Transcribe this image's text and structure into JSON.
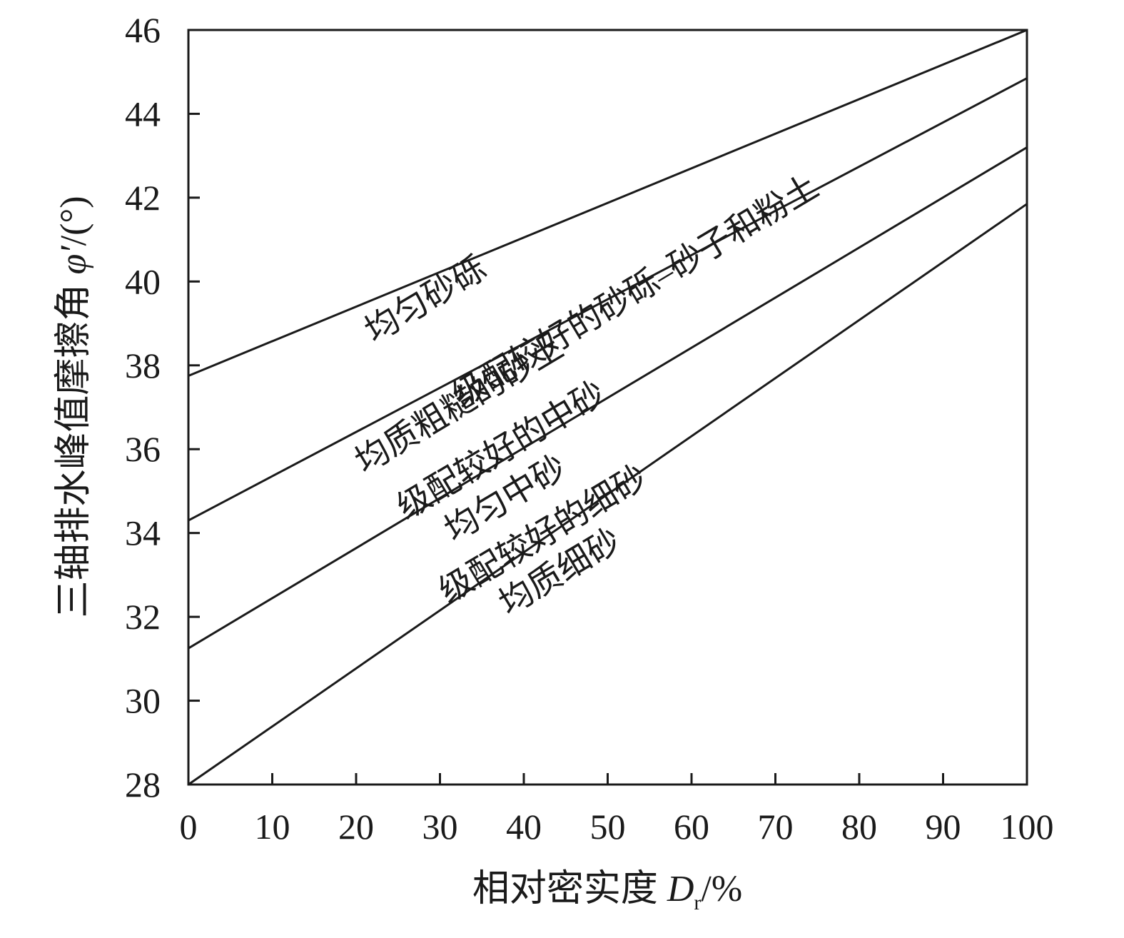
{
  "chart_data": {
    "type": "line",
    "xlabel_main": "相对密实度 ",
    "xlabel_symbol": "D",
    "xlabel_subscript": "r",
    "xlabel_unit": "/%",
    "ylabel_main": "三轴排水峰值摩擦角 ",
    "ylabel_symbol": "φ′",
    "ylabel_unit": "/(°)",
    "xlim": [
      0,
      100
    ],
    "ylim": [
      28,
      46
    ],
    "xticks": [
      "0",
      "10",
      "20",
      "30",
      "40",
      "50",
      "60",
      "70",
      "80",
      "90",
      "100"
    ],
    "yticks": [
      "28",
      "30",
      "32",
      "34",
      "36",
      "38",
      "40",
      "42",
      "44",
      "46"
    ],
    "grid": false,
    "series": [
      {
        "x": [
          0,
          100
        ],
        "y": [
          37.75,
          46.0
        ]
      },
      {
        "x": [
          0,
          100
        ],
        "y": [
          34.3,
          44.85
        ]
      },
      {
        "x": [
          0,
          100
        ],
        "y": [
          31.25,
          43.2
        ]
      },
      {
        "x": [
          0,
          100
        ],
        "y": [
          28.0,
          41.85
        ]
      }
    ],
    "line_labels": [
      {
        "text": "均匀砂砾",
        "x": 28.5,
        "y": 39.5
      },
      {
        "text": "级配较好的砂砾–砂子和粉土",
        "x": 53.5,
        "y": 39.7
      },
      {
        "text": "均质粗糙的砂土",
        "x": 32.5,
        "y": 37.0
      },
      {
        "text": "级配较好的中砂",
        "x": 37.5,
        "y": 35.9
      },
      {
        "text": "均匀中砂",
        "x": 38.0,
        "y": 34.75
      },
      {
        "text": "级配较好的细砂",
        "x": 42.5,
        "y": 33.9
      },
      {
        "text": "均质细砂",
        "x": 44.5,
        "y": 33.0
      }
    ]
  }
}
